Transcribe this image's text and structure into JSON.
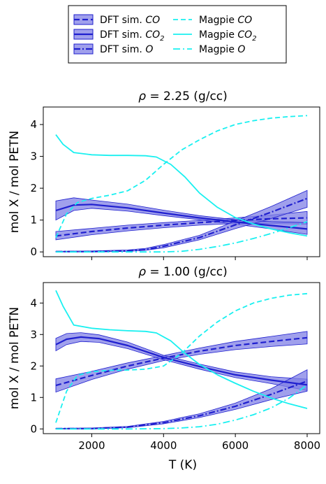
{
  "legend": {
    "entries": [
      {
        "key": "dft_co",
        "label": "DFT sim. ",
        "species": "CO",
        "sub": ""
      },
      {
        "key": "dft_co2",
        "label": "DFT sim. ",
        "species": "CO",
        "sub": "2"
      },
      {
        "key": "dft_o",
        "label": "DFT sim. ",
        "species": "O",
        "sub": ""
      },
      {
        "key": "mag_co",
        "label": "Magpie ",
        "species": "CO",
        "sub": ""
      },
      {
        "key": "mag_co2",
        "label": "Magpie ",
        "species": "CO",
        "sub": "2"
      },
      {
        "key": "mag_o",
        "label": "Magpie ",
        "species": "O",
        "sub": ""
      }
    ]
  },
  "colors": {
    "dft_line": "#1f1fcf",
    "dft_band": "#8080e6",
    "magpie": "#19f0f0"
  },
  "chart_data": [
    {
      "type": "line",
      "title": "ρ = 2.25 (g/cc)",
      "title_rho": "ρ",
      "title_rest": " = 2.25 (g/cc)",
      "ylabel": "mol X / mol PETN",
      "xlabel": "",
      "xlim": [
        650,
        8350
      ],
      "ylim": [
        -0.15,
        4.55
      ],
      "yticks": [
        "0",
        "1",
        "2",
        "3",
        "4"
      ],
      "xticks": [
        2000,
        4000,
        6000,
        8000
      ],
      "show_xtick_labels": false,
      "series": [
        {
          "key": "dft_co",
          "x": [
            1000,
            2000,
            3000,
            4000,
            5000,
            6000,
            7000,
            8000
          ],
          "values": [
            0.5,
            0.64,
            0.75,
            0.84,
            0.92,
            0.99,
            1.04,
            1.07
          ],
          "lower": [
            0.38,
            0.54,
            0.66,
            0.76,
            0.84,
            0.89,
            0.89,
            0.87
          ],
          "upper": [
            0.64,
            0.74,
            0.84,
            0.92,
            0.99,
            1.07,
            1.16,
            1.27
          ]
        },
        {
          "key": "dft_co2",
          "x": [
            1000,
            1500,
            2000,
            3000,
            4000,
            5000,
            6000,
            7000,
            8000
          ],
          "values": [
            1.3,
            1.47,
            1.49,
            1.38,
            1.22,
            1.07,
            0.94,
            0.83,
            0.72
          ],
          "lower": [
            1.0,
            1.3,
            1.37,
            1.28,
            1.14,
            1.01,
            0.87,
            0.72,
            0.55
          ],
          "upper": [
            1.6,
            1.7,
            1.63,
            1.5,
            1.31,
            1.14,
            1.01,
            0.95,
            0.92
          ]
        },
        {
          "key": "dft_o",
          "x": [
            1000,
            2000,
            3000,
            3500,
            4000,
            5000,
            6000,
            7000,
            8000
          ],
          "values": [
            0.01,
            0.01,
            0.03,
            0.07,
            0.18,
            0.45,
            0.85,
            1.25,
            1.68
          ],
          "lower": [
            0.0,
            0.0,
            0.02,
            0.05,
            0.13,
            0.38,
            0.73,
            1.05,
            1.4
          ],
          "upper": [
            0.02,
            0.03,
            0.06,
            0.11,
            0.23,
            0.52,
            0.97,
            1.43,
            1.93
          ]
        },
        {
          "key": "mag_co",
          "x": [
            1000,
            1300,
            1600,
            2000,
            2500,
            3000,
            3500,
            4000,
            4500,
            5000,
            5500,
            6000,
            6500,
            7000,
            7500,
            8000
          ],
          "values": [
            0.45,
            1.2,
            1.55,
            1.68,
            1.78,
            1.92,
            2.25,
            2.75,
            3.2,
            3.52,
            3.8,
            4.0,
            4.12,
            4.2,
            4.25,
            4.28
          ]
        },
        {
          "key": "mag_co2",
          "x": [
            1000,
            1200,
            1500,
            2000,
            2500,
            3000,
            3500,
            3800,
            4200,
            4600,
            5000,
            5500,
            6000,
            6500,
            7000,
            7500,
            8000
          ],
          "values": [
            3.68,
            3.38,
            3.12,
            3.05,
            3.03,
            3.03,
            3.02,
            2.98,
            2.75,
            2.35,
            1.85,
            1.4,
            1.08,
            0.88,
            0.72,
            0.6,
            0.5
          ]
        },
        {
          "key": "mag_o",
          "x": [
            1000,
            3000,
            4000,
            4500,
            5000,
            5500,
            6000,
            6500,
            7000,
            7500,
            8000
          ],
          "values": [
            0.0,
            0.0,
            0.0,
            0.02,
            0.08,
            0.17,
            0.28,
            0.42,
            0.58,
            0.76,
            0.95
          ]
        }
      ]
    },
    {
      "type": "line",
      "title": "ρ = 1.00 (g/cc)",
      "title_rho": "ρ",
      "title_rest": " = 1.00 (g/cc)",
      "ylabel": "mol X / mol PETN",
      "xlabel": "T (K)",
      "xlim": [
        650,
        8350
      ],
      "ylim": [
        -0.15,
        4.65
      ],
      "yticks": [
        "0",
        "1",
        "2",
        "3",
        "4"
      ],
      "xticks": [
        2000,
        4000,
        6000,
        8000
      ],
      "xtick_labels": [
        "2000",
        "4000",
        "6000",
        "8000"
      ],
      "show_xtick_labels": true,
      "series": [
        {
          "key": "dft_co",
          "x": [
            1000,
            2000,
            3000,
            4000,
            5000,
            6000,
            7000,
            8000
          ],
          "values": [
            1.38,
            1.7,
            2.0,
            2.25,
            2.47,
            2.65,
            2.78,
            2.9
          ],
          "lower": [
            1.17,
            1.57,
            1.9,
            2.17,
            2.37,
            2.52,
            2.62,
            2.7
          ],
          "upper": [
            1.59,
            1.83,
            2.1,
            2.33,
            2.57,
            2.78,
            2.94,
            3.1
          ]
        },
        {
          "key": "dft_co2",
          "x": [
            1000,
            1300,
            1700,
            2200,
            3000,
            4000,
            5000,
            6000,
            7000,
            8000
          ],
          "values": [
            2.68,
            2.85,
            2.92,
            2.87,
            2.65,
            2.27,
            1.98,
            1.72,
            1.55,
            1.4
          ],
          "lower": [
            2.48,
            2.68,
            2.78,
            2.75,
            2.55,
            2.2,
            1.9,
            1.63,
            1.44,
            1.22
          ],
          "upper": [
            2.88,
            3.03,
            3.06,
            2.99,
            2.76,
            2.34,
            2.06,
            1.81,
            1.66,
            1.58
          ]
        },
        {
          "key": "dft_o",
          "x": [
            1000,
            2000,
            3000,
            4000,
            5000,
            6000,
            7000,
            8000
          ],
          "values": [
            0.01,
            0.01,
            0.06,
            0.2,
            0.42,
            0.72,
            1.1,
            1.52
          ],
          "lower": [
            0.0,
            0.0,
            0.04,
            0.16,
            0.36,
            0.62,
            0.93,
            1.2
          ],
          "upper": [
            0.02,
            0.03,
            0.08,
            0.24,
            0.48,
            0.82,
            1.28,
            1.88
          ]
        },
        {
          "key": "mag_co",
          "x": [
            1000,
            1300,
            1600,
            2000,
            2500,
            3000,
            3500,
            4000,
            4500,
            5000,
            5500,
            6000,
            6500,
            7000,
            7500,
            8000
          ],
          "values": [
            0.2,
            1.2,
            1.7,
            1.82,
            1.86,
            1.87,
            1.9,
            2.0,
            2.4,
            2.95,
            3.4,
            3.75,
            4.0,
            4.15,
            4.25,
            4.3
          ]
        },
        {
          "key": "mag_co2",
          "x": [
            1000,
            1200,
            1500,
            2000,
            2500,
            3000,
            3500,
            3800,
            4200,
            4600,
            5000,
            5500,
            6000,
            6500,
            7000,
            7500,
            8000
          ],
          "values": [
            4.4,
            3.9,
            3.3,
            3.2,
            3.15,
            3.12,
            3.1,
            3.05,
            2.8,
            2.4,
            2.05,
            1.72,
            1.45,
            1.2,
            0.98,
            0.8,
            0.65
          ]
        },
        {
          "key": "mag_o",
          "x": [
            1000,
            3000,
            4000,
            4500,
            5000,
            5500,
            6000,
            6500,
            7000,
            7500,
            8000
          ],
          "values": [
            0.0,
            0.0,
            0.01,
            0.03,
            0.07,
            0.15,
            0.28,
            0.45,
            0.67,
            0.98,
            1.4
          ]
        }
      ]
    }
  ]
}
